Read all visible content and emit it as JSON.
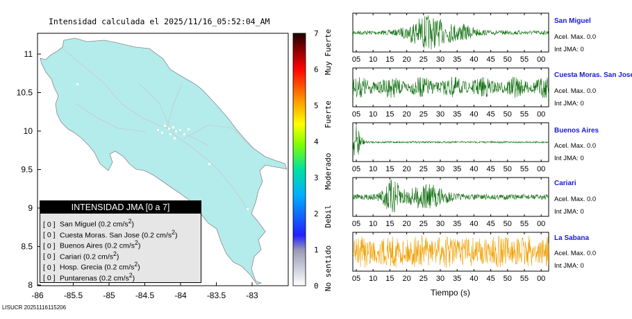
{
  "map": {
    "title": "Intensidad calculada el 2025/11/16_05:52:04_AM",
    "lon_ticks": [
      "-86",
      "-85.5",
      "-85",
      "-84.5",
      "-84",
      "-83.5",
      "-83"
    ],
    "lat_ticks": [
      "11",
      "10.5",
      "10",
      "9.5",
      "9",
      "8.5",
      "8"
    ],
    "legend": {
      "title": "INTENSIDAD JMA [0 a 7]",
      "items": [
        {
          "level": "[ 0 ]",
          "text": "San Miguel (0.2 cm/s",
          "sup": "2",
          "close": ")"
        },
        {
          "level": "[ 0 ]",
          "text": "Cuesta Moras. San Jose (0.2 cm/s",
          "sup": "2",
          "close": ")"
        },
        {
          "level": "[ 0 ]",
          "text": "Buenos Aires (0.2 cm/s",
          "sup": "2",
          "close": ")"
        },
        {
          "level": "[ 0 ]",
          "text": "Cariari (0.2 cm/s",
          "sup": "2",
          "close": ")"
        },
        {
          "level": "[ 0 ]",
          "text": "Hosp. Grecia (0.2 cm/s",
          "sup": "2",
          "close": ")"
        },
        {
          "level": "[ 0 ]",
          "text": "Puntarenas (0.2 cm/s",
          "sup": "2",
          "close": ")"
        }
      ]
    },
    "fill_color": "#b4ecec"
  },
  "colorbar": {
    "ticks": [
      "0",
      "1",
      "2",
      "3",
      "4",
      "5",
      "6",
      "7"
    ],
    "category_labels": [
      "No sentido",
      "Debil",
      "Moderado",
      "Fuerte",
      "Muy Fuerte"
    ]
  },
  "stations": [
    {
      "name": "San Miguel",
      "accel": "Acel. Max. 0.0",
      "jma": "Int JMA: 0",
      "color": "#0b6b0b"
    },
    {
      "name": "Cuesta Moras. San Jose",
      "accel": "Acel. Max. 0.0",
      "jma": "Int JMA: 0",
      "color": "#0b6b0b"
    },
    {
      "name": "Buenos Aires",
      "accel": "Acel. Max. 0.0",
      "jma": "Int JMA: 0",
      "color": "#0b6b0b"
    },
    {
      "name": "Cariari",
      "accel": "Acel. Max. 0.0",
      "jma": "Int JMA: 0",
      "color": "#0b6b0b"
    },
    {
      "name": "La Sabana",
      "accel": "Acel. Max. 0.0",
      "jma": "Int JMA: 0",
      "color": "#f0a000"
    }
  ],
  "waveform_time_ticks": [
    "05",
    "10",
    "15",
    "20",
    "25",
    "30",
    "35",
    "40",
    "45",
    "50",
    "55",
    "00"
  ],
  "waveform_xlabel": "Tiempo (s)",
  "footer": "LISUCR 20251116115206",
  "chart_data": {
    "type": "line",
    "description_axis": "Intensidad JMA scale",
    "colorbar_range": [
      0,
      7
    ],
    "map_xlim": [
      -86,
      -82.5
    ],
    "map_ylim": [
      8,
      11.3
    ],
    "series": [
      {
        "name": "San Miguel",
        "peak_intensity": 0,
        "accel_max": 0.0
      },
      {
        "name": "Cuesta Moras. San Jose",
        "peak_intensity": 0,
        "accel_max": 0.0
      },
      {
        "name": "Buenos Aires",
        "peak_intensity": 0,
        "accel_max": 0.0
      },
      {
        "name": "Cariari",
        "peak_intensity": 0,
        "accel_max": 0.0
      },
      {
        "name": "La Sabana",
        "peak_intensity": 0,
        "accel_max": 0.0
      }
    ]
  }
}
